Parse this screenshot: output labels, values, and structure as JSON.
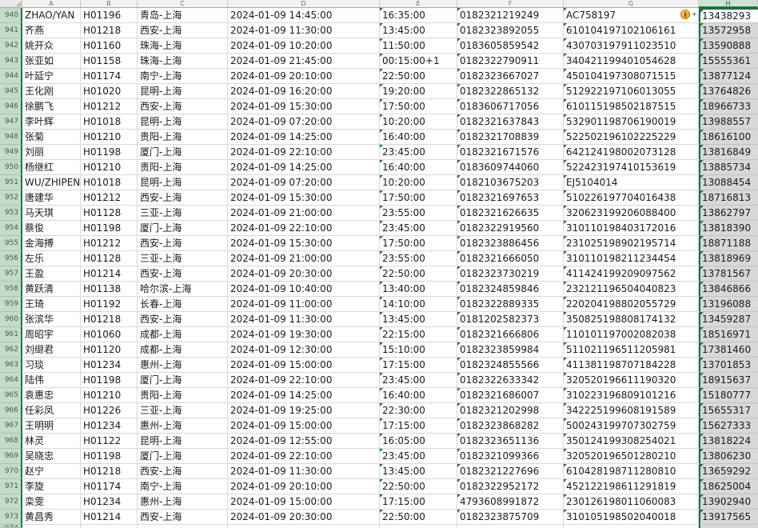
{
  "columns": {
    "letters": [
      "A",
      "B",
      "C",
      "D",
      "E",
      "F",
      "G",
      "H"
    ],
    "selected_column": "H",
    "active_cell": "H940"
  },
  "colors": {
    "selection_green": "#1e7145",
    "row_header_bg": "#c7dac9",
    "col_header_bg": "#f2f2f2",
    "selected_col_header_bg": "#cfe3d4",
    "selected_col_fill": "#d7d8d7",
    "gridline": "#d9d9d9",
    "indicator_triangle_green": "#1e7145",
    "warning_icon_orange": "#efa01e"
  },
  "rows": [
    {
      "row_number": "940",
      "passenger": "ZHAO/YAN",
      "flight_no": "H01196",
      "route": "青岛-上海",
      "depart_datetime": "2024-01-09 14:45:00",
      "arrive_time": "16:35:00",
      "booking_no": "0182321219249",
      "id_no": "AC758197",
      "phone": "13438293",
      "warning": true
    },
    {
      "row_number": "941",
      "passenger": "齐燕",
      "flight_no": "H01218",
      "route": "西安-上海",
      "depart_datetime": "2024-01-09 11:30:00",
      "arrive_time": "13:45:00",
      "booking_no": "0182323892055",
      "id_no": "610104197102106161",
      "phone": "13572958"
    },
    {
      "row_number": "942",
      "passenger": "姚开众",
      "flight_no": "H01160",
      "route": "珠海-上海",
      "depart_datetime": "2024-01-09 10:20:00",
      "arrive_time": "11:50:00",
      "booking_no": "0183605859542",
      "id_no": "430703197911023510",
      "phone": "13590888"
    },
    {
      "row_number": "943",
      "passenger": "张亚如",
      "flight_no": "H01158",
      "route": "珠海-上海",
      "depart_datetime": "2024-01-09 21:45:00",
      "arrive_time": "00:15:00+1",
      "booking_no": "0182322790911",
      "id_no": "340421199401054628",
      "phone": "15555361"
    },
    {
      "row_number": "944",
      "passenger": "叶延宁",
      "flight_no": "H01174",
      "route": "南宁-上海",
      "depart_datetime": "2024-01-09 20:10:00",
      "arrive_time": "22:50:00",
      "booking_no": "0182323667027",
      "id_no": "450104197308071515",
      "phone": "13877124"
    },
    {
      "row_number": "945",
      "passenger": "王化刚",
      "flight_no": "H01020",
      "route": "昆明-上海",
      "depart_datetime": "2024-01-09 16:20:00",
      "arrive_time": "19:20:00",
      "booking_no": "0182322865132",
      "id_no": "512922197106013055",
      "phone": "13764826"
    },
    {
      "row_number": "946",
      "passenger": "徐鹏飞",
      "flight_no": "H01212",
      "route": "西安-上海",
      "depart_datetime": "2024-01-09 15:30:00",
      "arrive_time": "17:50:00",
      "booking_no": "0183606717056",
      "id_no": "610115198502187515",
      "phone": "18966733"
    },
    {
      "row_number": "947",
      "passenger": "李叶辉",
      "flight_no": "H01018",
      "route": "昆明-上海",
      "depart_datetime": "2024-01-09 07:20:00",
      "arrive_time": "10:20:00",
      "booking_no": "0182321637843",
      "id_no": "532901198706190019",
      "phone": "13988557"
    },
    {
      "row_number": "948",
      "passenger": "张菊",
      "flight_no": "H01210",
      "route": "贵阳-上海",
      "depart_datetime": "2024-01-09 14:25:00",
      "arrive_time": "16:40:00",
      "booking_no": "0182321708839",
      "id_no": "522502196102225229",
      "phone": "18616100"
    },
    {
      "row_number": "949",
      "passenger": "刘丽",
      "flight_no": "H01198",
      "route": "厦门-上海",
      "depart_datetime": "2024-01-09 22:10:00",
      "arrive_time": "23:45:00",
      "booking_no": "0182321671576",
      "id_no": "642124198002073128",
      "phone": "13816849"
    },
    {
      "row_number": "950",
      "passenger": "杨继红",
      "flight_no": "H01210",
      "route": "贵阳-上海",
      "depart_datetime": "2024-01-09 14:25:00",
      "arrive_time": "16:40:00",
      "booking_no": "0183609744060",
      "id_no": "522423197410153619",
      "phone": "13885734"
    },
    {
      "row_number": "951",
      "passenger": "WU/ZHIPEN",
      "flight_no": "H01018",
      "route": "昆明-上海",
      "depart_datetime": "2024-01-09 07:20:00",
      "arrive_time": "10:20:00",
      "booking_no": "0182103675203",
      "id_no": "EJ5104014",
      "phone": "13088454"
    },
    {
      "row_number": "952",
      "passenger": "唐建华",
      "flight_no": "H01212",
      "route": "西安-上海",
      "depart_datetime": "2024-01-09 15:30:00",
      "arrive_time": "17:50:00",
      "booking_no": "0182321697653",
      "id_no": "510226197704016438",
      "phone": "18716813"
    },
    {
      "row_number": "953",
      "passenger": "马天琪",
      "flight_no": "H01128",
      "route": "三亚-上海",
      "depart_datetime": "2024-01-09 21:00:00",
      "arrive_time": "23:55:00",
      "booking_no": "0182321626635",
      "id_no": "320623199206088400",
      "phone": "13862797"
    },
    {
      "row_number": "954",
      "passenger": "蔡俊",
      "flight_no": "H01198",
      "route": "厦门-上海",
      "depart_datetime": "2024-01-09 22:10:00",
      "arrive_time": "23:45:00",
      "booking_no": "0182322919560",
      "id_no": "310110198403172016",
      "phone": "13818390"
    },
    {
      "row_number": "955",
      "passenger": "金海搏",
      "flight_no": "H01212",
      "route": "西安-上海",
      "depart_datetime": "2024-01-09 15:30:00",
      "arrive_time": "17:50:00",
      "booking_no": "0182323886456",
      "id_no": "231025198902195714",
      "phone": "18871188"
    },
    {
      "row_number": "956",
      "passenger": "左乐",
      "flight_no": "H01128",
      "route": "三亚-上海",
      "depart_datetime": "2024-01-09 21:00:00",
      "arrive_time": "23:55:00",
      "booking_no": "0182321666050",
      "id_no": "310110198211234454",
      "phone": "13818969"
    },
    {
      "row_number": "957",
      "passenger": "王盈",
      "flight_no": "H01214",
      "route": "西安-上海",
      "depart_datetime": "2024-01-09 20:30:00",
      "arrive_time": "22:50:00",
      "booking_no": "0182323730219",
      "id_no": "411424199209097562",
      "phone": "13781567"
    },
    {
      "row_number": "958",
      "passenger": "黄跃清",
      "flight_no": "H01138",
      "route": "哈尔滨-上海",
      "depart_datetime": "2024-01-09 10:40:00",
      "arrive_time": "13:40:00",
      "booking_no": "0182324859846",
      "id_no": "232121196504040823",
      "phone": "13846866"
    },
    {
      "row_number": "959",
      "passenger": "王琦",
      "flight_no": "H01192",
      "route": "长春-上海",
      "depart_datetime": "2024-01-09 11:00:00",
      "arrive_time": "14:10:00",
      "booking_no": "0182322889335",
      "id_no": "220204198802055729",
      "phone": "13196088"
    },
    {
      "row_number": "960",
      "passenger": "张滨华",
      "flight_no": "H01218",
      "route": "西安-上海",
      "depart_datetime": "2024-01-09 11:30:00",
      "arrive_time": "13:45:00",
      "booking_no": "0181202582373",
      "id_no": "350825198808174132",
      "phone": "13459287"
    },
    {
      "row_number": "961",
      "passenger": "周昭宇",
      "flight_no": "H01060",
      "route": "成都-上海",
      "depart_datetime": "2024-01-09 19:30:00",
      "arrive_time": "22:15:00",
      "booking_no": "0182321666806",
      "id_no": "110101197002082038",
      "phone": "18516971"
    },
    {
      "row_number": "962",
      "passenger": "刘缬君",
      "flight_no": "H01120",
      "route": "成都-上海",
      "depart_datetime": "2024-01-09 12:30:00",
      "arrive_time": "15:10:00",
      "booking_no": "0182323859984",
      "id_no": "511021196511205981",
      "phone": "17381460"
    },
    {
      "row_number": "963",
      "passenger": "习琰",
      "flight_no": "H01234",
      "route": "惠州-上海",
      "depart_datetime": "2024-01-09 15:00:00",
      "arrive_time": "17:15:00",
      "booking_no": "0182324855566",
      "id_no": "411381198707184228",
      "phone": "13701853"
    },
    {
      "row_number": "964",
      "passenger": "陆伟",
      "flight_no": "H01198",
      "route": "厦门-上海",
      "depart_datetime": "2024-01-09 22:10:00",
      "arrive_time": "23:45:00",
      "booking_no": "0182322633342",
      "id_no": "320520196611190320",
      "phone": "18915637"
    },
    {
      "row_number": "965",
      "passenger": "袁惠忠",
      "flight_no": "H01210",
      "route": "贵阳-上海",
      "depart_datetime": "2024-01-09 14:25:00",
      "arrive_time": "16:40:00",
      "booking_no": "0182321686007",
      "id_no": "310223196809101216",
      "phone": "15180777"
    },
    {
      "row_number": "966",
      "passenger": "任彩凤",
      "flight_no": "H01226",
      "route": "三亚-上海",
      "depart_datetime": "2024-01-09 19:25:00",
      "arrive_time": "22:30:00",
      "booking_no": "0182321202998",
      "id_no": "342225199608191589",
      "phone": "15655317"
    },
    {
      "row_number": "967",
      "passenger": "王明明",
      "flight_no": "H01234",
      "route": "惠州-上海",
      "depart_datetime": "2024-01-09 15:00:00",
      "arrive_time": "17:15:00",
      "booking_no": "0182323868282",
      "id_no": "500243199707302759",
      "phone": "15627333"
    },
    {
      "row_number": "968",
      "passenger": "林灵",
      "flight_no": "H01122",
      "route": "昆明-上海",
      "depart_datetime": "2024-01-09 12:55:00",
      "arrive_time": "16:05:00",
      "booking_no": "0182323651136",
      "id_no": "350124199308254021",
      "phone": "13818224"
    },
    {
      "row_number": "969",
      "passenger": "吴晓忠",
      "flight_no": "H01198",
      "route": "厦门-上海",
      "depart_datetime": "2024-01-09 22:10:00",
      "arrive_time": "23:45:00",
      "booking_no": "0182321099366",
      "id_no": "320520196501280210",
      "phone": "13806230"
    },
    {
      "row_number": "970",
      "passenger": "赵宁",
      "flight_no": "H01218",
      "route": "西安-上海",
      "depart_datetime": "2024-01-09 11:30:00",
      "arrive_time": "13:45:00",
      "booking_no": "0182321227696",
      "id_no": "610428198711280810",
      "phone": "13659292"
    },
    {
      "row_number": "971",
      "passenger": "李旋",
      "flight_no": "H01174",
      "route": "南宁-上海",
      "depart_datetime": "2024-01-09 20:10:00",
      "arrive_time": "22:50:00",
      "booking_no": "0182322952172",
      "id_no": "452122198611291819",
      "phone": "18625004"
    },
    {
      "row_number": "972",
      "passenger": "栾雯",
      "flight_no": "H01234",
      "route": "惠州-上海",
      "depart_datetime": "2024-01-09 15:00:00",
      "arrive_time": "17:15:00",
      "booking_no": "4793608991872",
      "id_no": "230126198011060083",
      "phone": "13902940"
    },
    {
      "row_number": "973",
      "passenger": "黄昌秀",
      "flight_no": "H01214",
      "route": "西安-上海",
      "depart_datetime": "2024-01-09 20:30:00",
      "arrive_time": "22:50:00",
      "booking_no": "0182323875709",
      "id_no": "310105198502040018",
      "phone": "13917565"
    }
  ],
  "partial_row": {
    "row_number": "974"
  }
}
